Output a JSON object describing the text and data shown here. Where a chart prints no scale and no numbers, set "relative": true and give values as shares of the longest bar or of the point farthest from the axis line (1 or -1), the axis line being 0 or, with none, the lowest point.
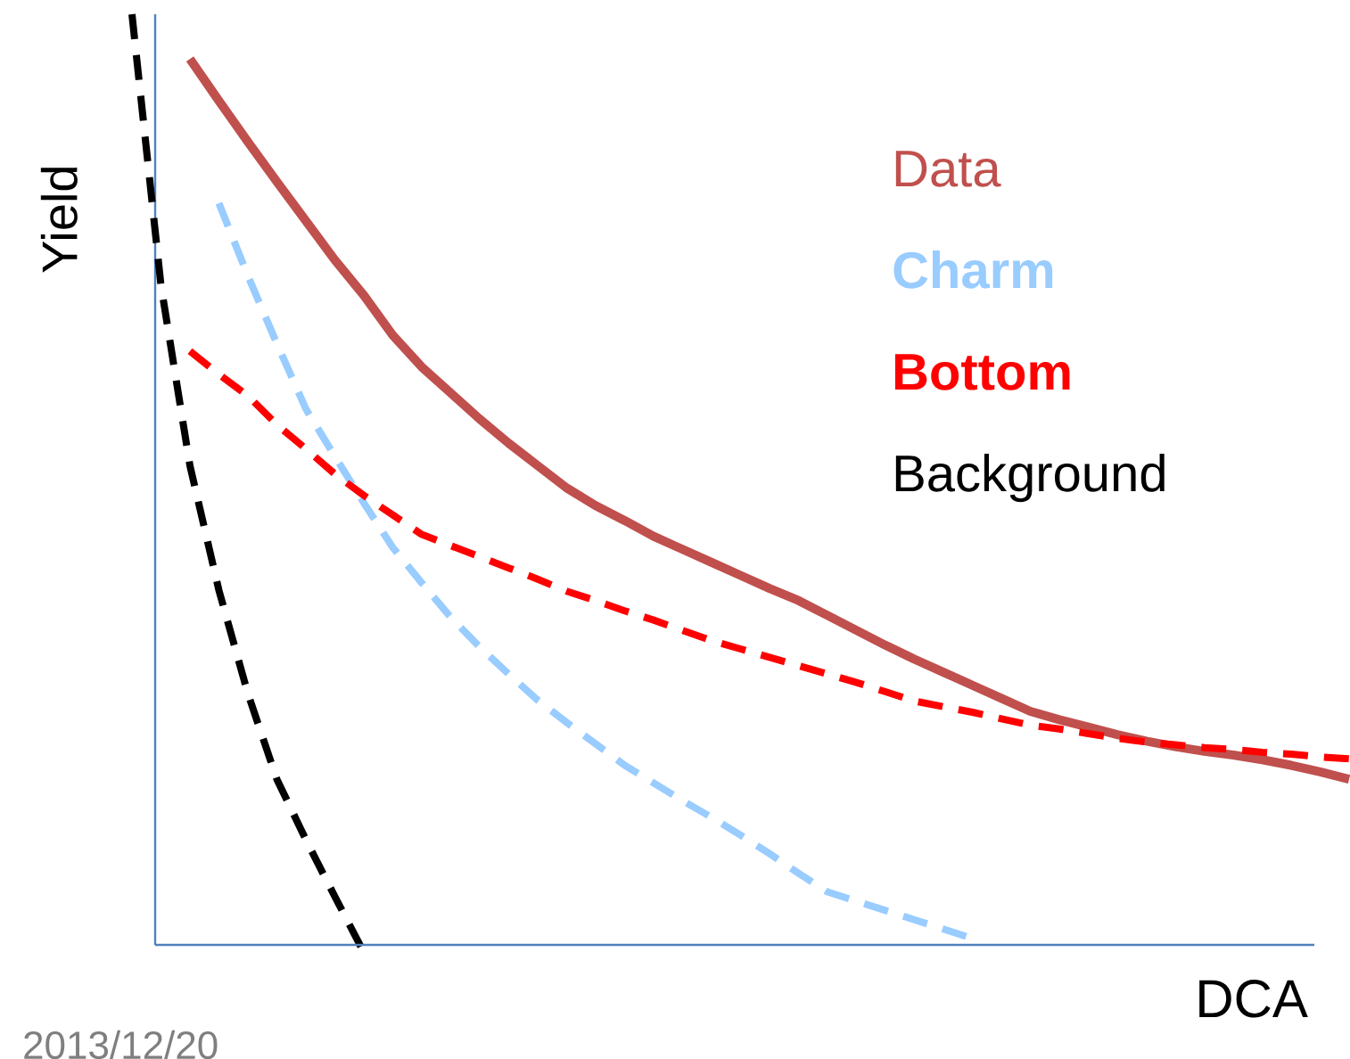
{
  "chart_data": {
    "type": "line",
    "relative": true,
    "xlabel": "DCA",
    "ylabel": "Yield",
    "marker": "none",
    "annotations": [
      "2013/12/20"
    ],
    "ref_lines": [
      {
        "axis": "y",
        "value": 0,
        "color": "#4f81bd"
      }
    ],
    "categories": [
      null,
      null,
      null,
      null,
      null,
      null,
      null,
      null,
      null,
      null,
      null,
      null,
      null,
      null,
      null,
      null,
      null,
      null,
      null,
      null,
      null,
      null,
      null,
      null,
      null,
      null,
      null,
      null,
      null,
      null,
      null,
      null,
      null,
      null,
      null,
      null,
      null,
      null,
      null,
      null,
      null,
      null,
      null
    ],
    "series": [
      {
        "name": "Data",
        "color": "#c0504d",
        "line_style": "solid",
        "values": [
          null,
          null,
          0.952,
          0.907,
          0.863,
          0.82,
          0.778,
          0.736,
          0.698,
          0.655,
          0.621,
          0.593,
          0.565,
          0.539,
          0.515,
          0.491,
          0.472,
          0.456,
          0.439,
          0.425,
          0.411,
          0.397,
          0.383,
          0.37,
          0.354,
          0.338,
          0.322,
          0.307,
          0.293,
          0.279,
          0.265,
          0.251,
          0.242,
          0.234,
          0.226,
          0.219,
          0.213,
          0.208,
          0.204,
          0.199,
          0.193,
          0.186,
          0.178
        ]
      },
      {
        "name": "**Charm**",
        "color": "#99ccff",
        "line_style": "dashed",
        "values": [
          null,
          null,
          null,
          0.797,
          0.719,
          0.646,
          0.576,
          0.525,
          0.475,
          0.427,
          0.389,
          0.352,
          0.32,
          0.291,
          0.263,
          0.239,
          0.216,
          0.193,
          0.174,
          0.155,
          0.137,
          0.118,
          0.098,
          0.077,
          0.057,
          0.047,
          0.037,
          0.027,
          0.017,
          0.007,
          null,
          null,
          null,
          null,
          null,
          null,
          null,
          null,
          null,
          null,
          null,
          null,
          null
        ]
      },
      {
        "name": "**Bottom**",
        "color": "#ff0000",
        "line_style": "dashed",
        "values": [
          null,
          null,
          0.638,
          0.613,
          0.59,
          0.559,
          0.533,
          0.506,
          0.483,
          0.462,
          0.441,
          0.429,
          0.417,
          0.405,
          0.393,
          0.38,
          0.37,
          0.359,
          0.349,
          0.338,
          0.327,
          0.318,
          0.309,
          0.3,
          0.291,
          0.282,
          0.272,
          0.262,
          0.256,
          0.25,
          0.243,
          0.236,
          0.232,
          0.227,
          0.222,
          0.218,
          0.215,
          0.212,
          0.21,
          0.207,
          0.205,
          0.202,
          0.2
        ]
      },
      {
        "name": "Background",
        "color": "#000000",
        "line_style": "dashed",
        "values": [
          1.0,
          0.709,
          0.515,
          0.381,
          0.27,
          0.178,
          0.113,
          0.052,
          -0.008,
          null,
          null,
          null,
          null,
          null,
          null,
          null,
          null,
          null,
          null,
          null,
          null,
          null,
          null,
          null,
          null,
          null,
          null,
          null,
          null,
          null,
          null,
          null,
          null,
          null,
          null,
          null,
          null,
          null,
          null,
          null,
          null,
          null,
          null
        ]
      }
    ]
  }
}
